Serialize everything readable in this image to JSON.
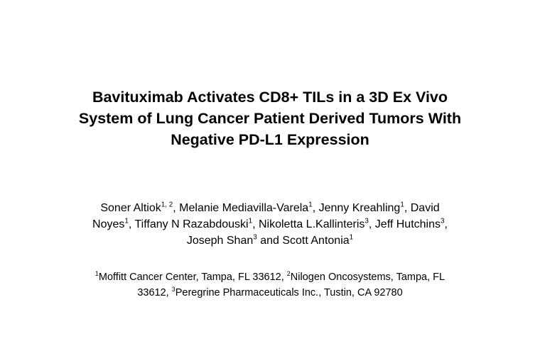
{
  "title": {
    "line1": "Bavituximab Activates CD8+ TILs in a 3D Ex Vivo",
    "line2": "System of Lung Cancer Patient Derived Tumors With",
    "line3": "Negative PD-L1 Expression"
  },
  "authors": {
    "a1_name": "Soner Altiok",
    "a1_sup": "1, 2",
    "sep1": ", Melanie Mediavilla-Varela",
    "a2_sup": "1",
    "sep2": ", Jenny Kreahling",
    "a3_sup": "1",
    "sep3": ", David",
    "a4_name": "Noyes",
    "a4_sup": "1",
    "sep4": ", Tiffany N Razabdouski",
    "a5_sup": "1",
    "sep5": ", Nikoletta L.Kallinteris",
    "a6_sup": "3",
    "sep6": ", Jeff Hutchins",
    "a7_sup": "3",
    "sep7": ",",
    "a8_name": "Joseph Shan",
    "a8_sup": "3",
    "sep8": " and Scott Antonia",
    "a9_sup": "1"
  },
  "affiliations": {
    "f1_sup": "1",
    "f1_text": "Moffitt Cancer Center, Tampa, FL 33612, ",
    "f2_sup": "2",
    "f2_text": "Nilogen Oncosystems, Tampa, FL",
    "f2_cont": "33612, ",
    "f3_sup": "3",
    "f3_text": "Peregrine Pharmaceuticals Inc., Tustin, CA 92780"
  }
}
